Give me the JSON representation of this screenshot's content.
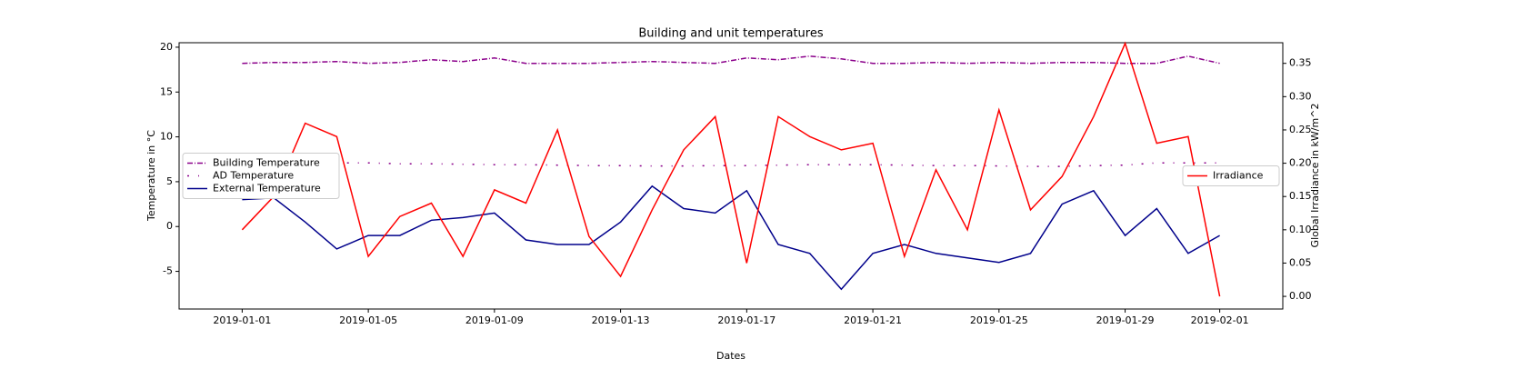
{
  "chart_data": {
    "type": "line",
    "title": "Building and unit temperatures",
    "xlabel": "Dates",
    "ylabel": "Temperature in °C",
    "y2label": "Global Irradiance in kW/m^2",
    "x": [
      "2019-01-01",
      "2019-01-02",
      "2019-01-03",
      "2019-01-04",
      "2019-01-05",
      "2019-01-06",
      "2019-01-07",
      "2019-01-08",
      "2019-01-09",
      "2019-01-10",
      "2019-01-11",
      "2019-01-12",
      "2019-01-13",
      "2019-01-14",
      "2019-01-15",
      "2019-01-16",
      "2019-01-17",
      "2019-01-18",
      "2019-01-19",
      "2019-01-20",
      "2019-01-21",
      "2019-01-22",
      "2019-01-23",
      "2019-01-24",
      "2019-01-25",
      "2019-01-26",
      "2019-01-27",
      "2019-01-28",
      "2019-01-29",
      "2019-01-30",
      "2019-01-31",
      "2019-02-01"
    ],
    "series": [
      {
        "name": "Building Temperature",
        "color": "#8b008b",
        "linestyle": "dashdot",
        "values": [
          18.2,
          18.3,
          18.3,
          18.4,
          18.2,
          18.3,
          18.6,
          18.4,
          18.8,
          18.2,
          18.2,
          18.2,
          18.3,
          18.4,
          18.3,
          18.2,
          18.8,
          18.6,
          19.0,
          18.7,
          18.2,
          18.2,
          18.3,
          18.2,
          18.3,
          18.2,
          18.3,
          18.3,
          18.2,
          18.2,
          19.0,
          18.2
        ]
      },
      {
        "name": "AD Temperature",
        "color": "#8b008b",
        "linestyle": "dashdot-sparse",
        "values": [
          null,
          null,
          7.1,
          7.1,
          7.1,
          7.0,
          7.0,
          6.95,
          6.9,
          6.9,
          6.85,
          6.8,
          6.8,
          6.75,
          6.75,
          6.8,
          6.8,
          6.85,
          6.9,
          6.9,
          6.9,
          6.85,
          6.8,
          6.8,
          6.75,
          6.7,
          6.7,
          6.8,
          6.85,
          7.1,
          7.1,
          7.1
        ]
      },
      {
        "name": "External Temperature",
        "color": "#00008b",
        "linestyle": "solid",
        "values": [
          3.0,
          3.2,
          0.5,
          -2.5,
          -1.0,
          -1.0,
          0.7,
          1.0,
          1.5,
          -1.5,
          -2.0,
          -2.0,
          0.5,
          4.5,
          2.0,
          1.5,
          4.0,
          -2.0,
          -3.0,
          -7.0,
          -3.0,
          -2.0,
          -3.0,
          -3.5,
          -4.0,
          -3.0,
          2.5,
          4.0,
          -1.0,
          2.0,
          -3.0,
          -1.0
        ]
      },
      {
        "name": "Irradiance",
        "color": "#ff0000",
        "linestyle": "solid",
        "axis": "y2",
        "values": [
          0.1,
          0.15,
          0.26,
          0.24,
          0.06,
          0.12,
          0.14,
          0.06,
          0.16,
          0.14,
          0.25,
          0.09,
          0.03,
          0.13,
          0.22,
          0.27,
          0.05,
          0.27,
          0.24,
          0.22,
          0.23,
          0.06,
          0.19,
          0.1,
          0.28,
          0.13,
          0.18,
          0.27,
          0.38,
          0.23,
          0.24,
          0.0
        ]
      }
    ],
    "xlim": [
      "2018-12-30",
      "2019-02-03"
    ],
    "xticks": [
      "2019-01-01",
      "2019-01-05",
      "2019-01-09",
      "2019-01-13",
      "2019-01-17",
      "2019-01-21",
      "2019-01-25",
      "2019-01-29",
      "2019-02-01"
    ],
    "ylim": [
      -9.2,
      20.5
    ],
    "yticks": [
      -5,
      0,
      5,
      10,
      15,
      20
    ],
    "y2lim": [
      -0.019,
      0.381
    ],
    "y2ticks": [
      {
        "value": 0,
        "label": "0.00"
      },
      {
        "value": 0.05,
        "label": "0.05"
      },
      {
        "value": 0.1,
        "label": "0.10"
      },
      {
        "value": 0.15,
        "label": "0.15"
      },
      {
        "value": 0.2,
        "label": "0.20"
      },
      {
        "value": 0.25,
        "label": "0.25"
      },
      {
        "value": 0.3,
        "label": "0.30"
      },
      {
        "value": 0.35,
        "label": "0.35"
      }
    ],
    "legend": "center left",
    "legend2": "center right",
    "grid": false
  }
}
